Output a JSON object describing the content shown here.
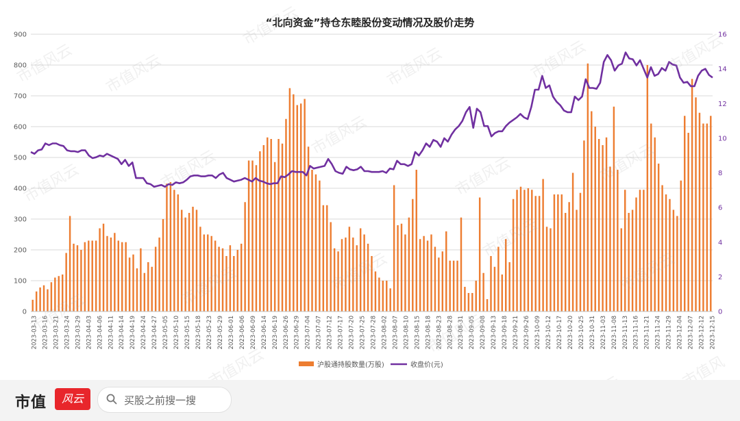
{
  "footer": {
    "brand_name": "市值",
    "brand_logo_text": "风云",
    "search_placeholder": "买股之前搜一搜"
  },
  "watermark_text": "市值风云",
  "colors": {
    "bar": "#ed7d31",
    "line": "#7030a0"
  },
  "chart_data": {
    "type": "bar",
    "title": "“北向资金”持仓东睦股份变动情况及股价走势",
    "left_axis": {
      "ylim": [
        0,
        900
      ],
      "ticks": [
        0,
        100,
        200,
        300,
        400,
        500,
        600,
        700,
        800,
        900
      ]
    },
    "right_axis": {
      "ylim": [
        0,
        16
      ],
      "ticks": [
        0,
        2,
        4,
        6,
        8,
        10,
        12,
        14,
        16
      ]
    },
    "x_tick_labels": [
      "2023-03-13",
      "2023-03-16",
      "2023-03-21",
      "2023-03-24",
      "2023-03-29",
      "2023-04-03",
      "2023-04-06",
      "2023-04-11",
      "2023-04-14",
      "2023-04-19",
      "2023-04-24",
      "2023-04-27",
      "2023-05-05",
      "2023-05-10",
      "2023-05-15",
      "2023-05-18",
      "2023-05-23",
      "2023-05-29",
      "2023-06-01",
      "2023-06-06",
      "2023-06-09",
      "2023-06-14",
      "2023-06-19",
      "2023-06-26",
      "2023-06-29",
      "2023-07-04",
      "2023-07-07",
      "2023-07-12",
      "2023-07-17",
      "2023-07-20",
      "2023-07-25",
      "2023-07-28",
      "2023-08-02",
      "2023-08-07",
      "2023-08-10",
      "2023-08-15",
      "2023-08-18",
      "2023-08-23",
      "2023-08-28",
      "2023-08-31",
      "2023-09-05",
      "2023-09-08",
      "2023-09-13",
      "2023-09-18",
      "2023-09-21",
      "2023-09-26",
      "2023-10-09",
      "2023-10-12",
      "2023-10-17",
      "2023-10-20",
      "2023-10-25",
      "2023-10-31",
      "2023-11-03",
      "2023-11-08",
      "2023-11-13",
      "2023-11-16",
      "2023-11-21",
      "2023-11-24",
      "2023-11-29",
      "2023-12-04",
      "2023-12-07",
      "2023-12-12",
      "2023-12-15"
    ],
    "grid": true,
    "legend_position": "bottom",
    "series": [
      {
        "name": "沪股通持股数量(万股)",
        "type": "bar",
        "axis": "left",
        "values": [
          38,
          65,
          78,
          85,
          72,
          95,
          110,
          115,
          120,
          190,
          310,
          220,
          215,
          200,
          225,
          230,
          230,
          230,
          270,
          285,
          245,
          240,
          255,
          230,
          225,
          225,
          175,
          185,
          140,
          205,
          125,
          160,
          145,
          210,
          240,
          300,
          415,
          420,
          395,
          380,
          330,
          305,
          320,
          340,
          330,
          275,
          250,
          250,
          245,
          230,
          210,
          205,
          180,
          215,
          180,
          200,
          220,
          355,
          490,
          490,
          475,
          520,
          540,
          565,
          560,
          485,
          560,
          545,
          625,
          725,
          705,
          670,
          675,
          690,
          535,
          460,
          445,
          425,
          345,
          345,
          290,
          205,
          195,
          235,
          240,
          275,
          240,
          215,
          270,
          250,
          220,
          180,
          130,
          110,
          100,
          100,
          75,
          410,
          280,
          285,
          250,
          305,
          365,
          460,
          235,
          245,
          230,
          250,
          210,
          175,
          195,
          260,
          165,
          165,
          165,
          305,
          80,
          60,
          60,
          100,
          370,
          125,
          40,
          180,
          145,
          210,
          120,
          235,
          160,
          365,
          395,
          405,
          395,
          400,
          395,
          375,
          375,
          430,
          275,
          270,
          380,
          380,
          380,
          320,
          355,
          450,
          330,
          385,
          555,
          805,
          650,
          600,
          560,
          540,
          565,
          470,
          665,
          460,
          270,
          395,
          320,
          330,
          370,
          395,
          395,
          800,
          610,
          565,
          480,
          410,
          380,
          365,
          330,
          310,
          425,
          635,
          580,
          755,
          695,
          645,
          610,
          610,
          635
        ]
      },
      {
        "name": "收盘价(元)",
        "type": "line",
        "axis": "right",
        "values": [
          9.2,
          9.1,
          9.3,
          9.35,
          9.7,
          9.6,
          9.7,
          9.7,
          9.6,
          9.55,
          9.3,
          9.25,
          9.25,
          9.2,
          9.3,
          9.3,
          9.0,
          8.85,
          8.9,
          9.0,
          8.95,
          9.1,
          9.0,
          8.9,
          8.8,
          8.5,
          8.75,
          8.4,
          8.6,
          7.7,
          7.7,
          7.7,
          7.4,
          7.35,
          7.2,
          7.25,
          7.3,
          7.2,
          7.35,
          7.3,
          7.45,
          7.4,
          7.45,
          7.6,
          7.8,
          7.85,
          7.85,
          7.8,
          7.8,
          7.85,
          7.85,
          7.7,
          7.9,
          8.0,
          7.7,
          7.6,
          7.5,
          7.55,
          7.6,
          7.7,
          7.6,
          7.5,
          7.7,
          7.55,
          7.5,
          7.4,
          7.35,
          7.4,
          7.4,
          7.8,
          7.75,
          7.9,
          8.1,
          8.05,
          8.05,
          8.05,
          7.85,
          8.4,
          8.25,
          8.3,
          8.35,
          8.4,
          8.8,
          8.5,
          8.1,
          8.0,
          7.95,
          8.35,
          8.2,
          8.15,
          8.2,
          8.35,
          8.1,
          8.1,
          8.05,
          8.05,
          8.05,
          8.1,
          8.0,
          8.25,
          8.2,
          8.7,
          8.5,
          8.5,
          8.4,
          8.5,
          9.2,
          9.0,
          9.3,
          9.7,
          9.5,
          9.9,
          9.8,
          9.5,
          10.0,
          9.8,
          10.2,
          10.5,
          10.7,
          11.0,
          11.5,
          11.8,
          10.6,
          11.7,
          11.5,
          10.7,
          10.7,
          10.1,
          10.3,
          10.4,
          10.4,
          10.7,
          10.9,
          11.05,
          11.2,
          11.4,
          11.2,
          11.1,
          11.8,
          12.8,
          12.8,
          13.6,
          12.9,
          13.05,
          12.4,
          12.1,
          11.9,
          11.6,
          11.5,
          11.5,
          12.4,
          12.2,
          12.4,
          13.4,
          12.9,
          12.9,
          12.85,
          13.2,
          14.4,
          14.8,
          14.5,
          13.9,
          14.2,
          14.3,
          14.95,
          14.6,
          14.55,
          14.2,
          14.5,
          14.0,
          13.5,
          14.1,
          13.6,
          13.7,
          14.05,
          13.9,
          14.4,
          14.25,
          14.2,
          13.5,
          13.2,
          13.25,
          13.0,
          13.0,
          13.6,
          13.9,
          14.0,
          13.65,
          13.5
        ]
      }
    ]
  }
}
